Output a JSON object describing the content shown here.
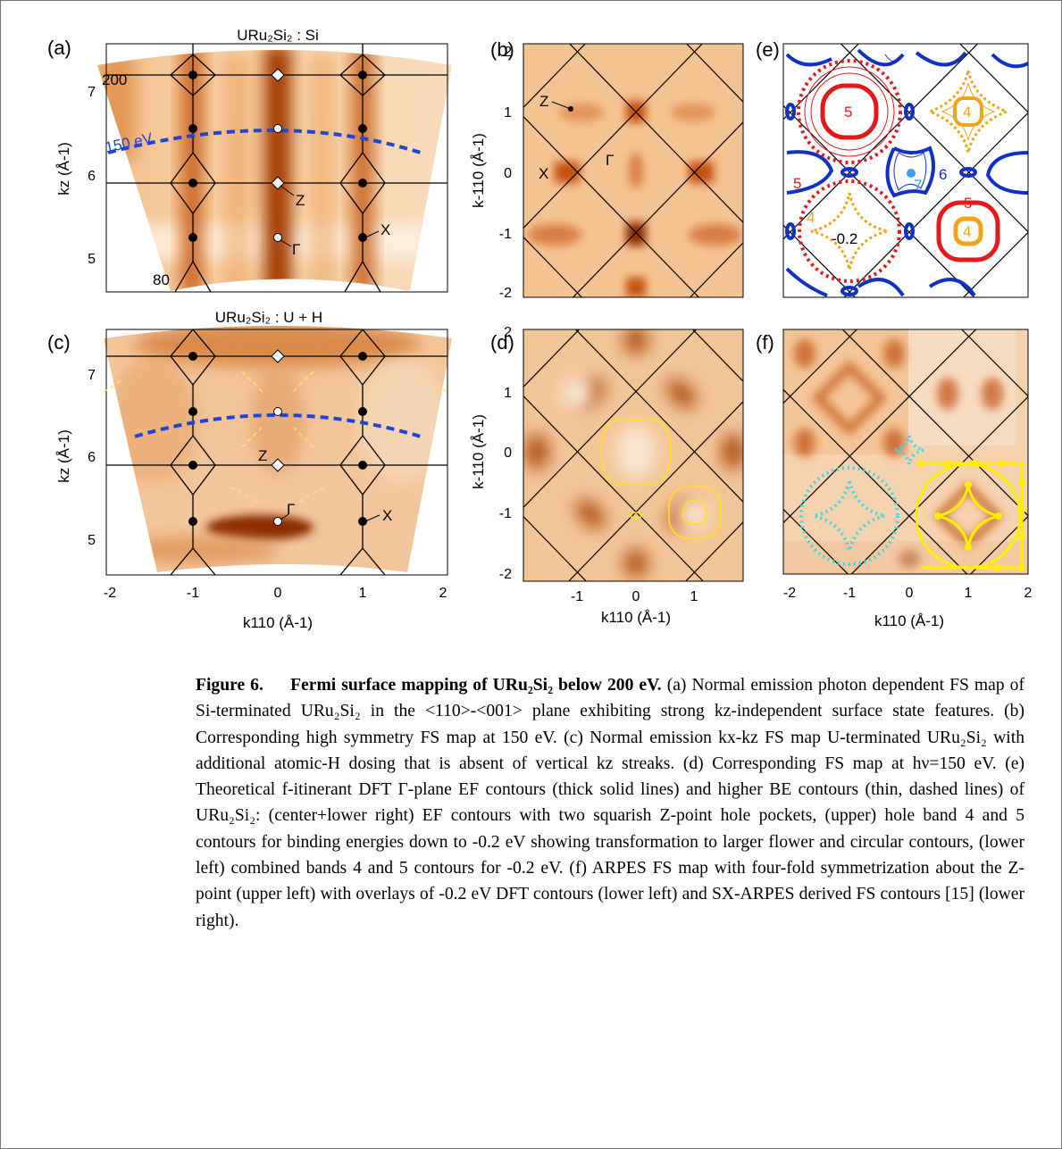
{
  "figure": {
    "a": {
      "label": "(a)",
      "title": "URu₂Si₂ : Si",
      "y_label": "kz (Å-1)",
      "y_ticks": [
        "7",
        "6",
        "5"
      ],
      "annotations": [
        "200",
        "150 eV",
        "80",
        "Z",
        "Γ",
        "X"
      ]
    },
    "b": {
      "label": "(b)",
      "y_label": "k-110 (Å-1)",
      "y_ticks": [
        "2",
        "1",
        "0",
        "-1",
        "-2"
      ],
      "annotations": [
        "Z",
        "X",
        "Γ"
      ]
    },
    "e": {
      "label": "(e)",
      "annotations": [
        "5",
        "4",
        "5",
        "6",
        "7",
        "5",
        "4",
        "-0.2",
        "4"
      ]
    },
    "c": {
      "label": "(c)",
      "title": "URu₂Si₂ : U + H",
      "y_label": "kz (Å-1)",
      "y_ticks": [
        "7",
        "6",
        "5"
      ],
      "x_ticks": [
        "-2",
        "-1",
        "0",
        "1",
        "2"
      ],
      "x_label": "k110 (Å-1)",
      "annotations": [
        "Z",
        "Γ",
        "X"
      ]
    },
    "d": {
      "label": "(d)",
      "y_label": "k-110 (Å-1)",
      "y_ticks": [
        "2",
        "1",
        "0",
        "-1",
        "-2"
      ],
      "x_ticks": [
        "-1",
        "0",
        "1"
      ],
      "x_label": "k110 (Å-1)"
    },
    "f": {
      "label": "(f)",
      "x_ticks": [
        "-2",
        "-1",
        "0",
        "1",
        "2"
      ],
      "x_label": "k110 (Å-1)"
    }
  },
  "caption": {
    "label": "Figure 6.",
    "title": "Fermi surface mapping of URu₂Si₂ below 200 eV.",
    "body": "(a) Normal emission photon dependent FS map of Si-terminated URu₂Si₂ in the <110>-<001> plane exhibiting strong kz-independent surface state features. (b) Corresponding high symmetry FS map at 150 eV. (c) Normal emission kx-kz FS map U-terminated URu₂Si₂ with additional atomic-H dosing that is absent of vertical kz streaks. (d) Corresponding FS map at hν=150 eV. (e) Theoretical f-itinerant DFT Γ-plane EF contours (thick solid lines) and higher BE contours (thin, dashed lines) of URu₂Si₂: (center+lower right) EF contours with two squarish Z-point hole pockets, (upper) hole band 4 and 5 contours for binding energies down to -0.2 eV showing transformation to larger flower and circular contours, (lower left) combined bands 4 and 5 contours for -0.2 eV. (f) ARPES FS map with four-fold symmetrization about the Z-point (upper left) with overlays of -0.2 eV DFT contours (lower left) and SX-ARPES derived FS contours [15] (lower right)."
  }
}
